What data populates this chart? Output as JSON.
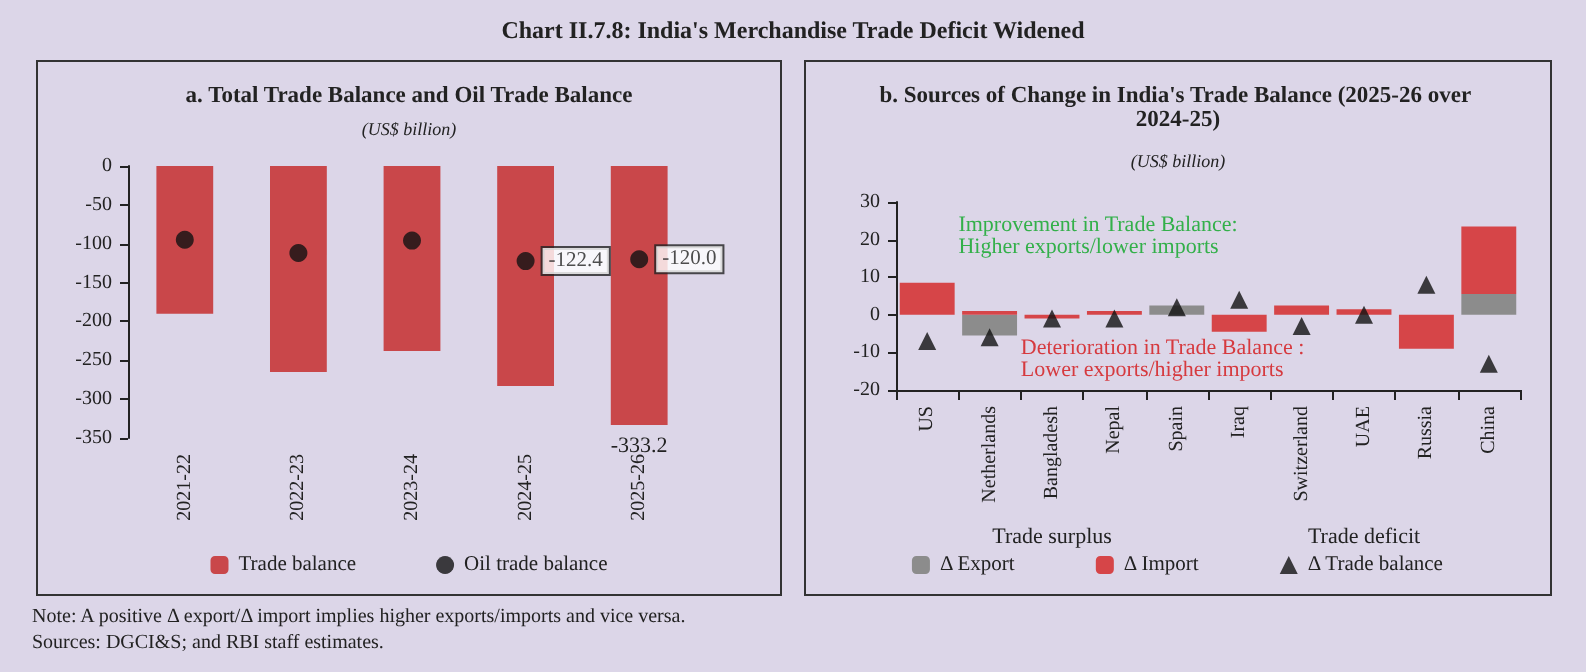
{
  "chart_data": [
    {
      "type": "bar",
      "title": "a. Total Trade Balance and Oil Trade Balance",
      "subtitle": "(US$ billion)",
      "annotations": [
        "Chart II.7.8: India's Merchandise Trade Deficit Widened",
        "Note: A positive Δ export/Δ import implies higher exports/imports and vice versa.",
        "Sources: DGCI&S; and RBI staff estimates."
      ],
      "categories": [
        "2021-22",
        "2022-23",
        "2023-24",
        "2024-25",
        "2025-26"
      ],
      "series": [
        {
          "name": "Trade balance",
          "color": "#c9474a",
          "values": [
            -190,
            -265,
            -238,
            -283,
            -333.2
          ],
          "value_labels": [
            null,
            null,
            null,
            null,
            "-333.2"
          ]
        },
        {
          "name": "Oil trade balance",
          "type": "scatter",
          "marker": "circle",
          "color": "#111111",
          "values": [
            -95,
            -112,
            -96,
            -122.4,
            -120.0
          ],
          "value_labels": [
            null,
            null,
            null,
            "-122.4",
            "-120.0"
          ]
        }
      ],
      "ylim": [
        -350,
        0
      ],
      "yticks": [
        -350,
        -300,
        -250,
        -200,
        -150,
        -100,
        -50,
        0
      ],
      "grid": false,
      "legend": "bottom"
    },
    {
      "type": "bar",
      "title": "b. Sources of Change in India's Trade Balance (2025-26 over 2024-25)",
      "subtitle": "(US$ billion)",
      "annotations": [
        "Improvement in Trade Balance: Higher exports/lower imports",
        "Deterioration in Trade Balance : Lower exports/higher imports",
        "Trade surplus",
        "Trade deficit"
      ],
      "categories": [
        "US",
        "Netherlands",
        "Bangladesh",
        "Nepal",
        "Spain",
        "Iraq",
        "Switzerland",
        "UAE",
        "Russia",
        "China"
      ],
      "stacked": true,
      "series": [
        {
          "name": "Δ Export",
          "color": "#8c8c8c",
          "values": [
            0,
            -5.5,
            0,
            0,
            2.5,
            0,
            0,
            0,
            0,
            5.5
          ]
        },
        {
          "name": "Δ Import",
          "color": "#d64548",
          "values": [
            8.5,
            1,
            -1,
            1,
            0,
            -4.5,
            2.5,
            1.5,
            -9,
            18
          ]
        },
        {
          "name": "Δ Trade balance",
          "type": "scatter",
          "marker": "triangle",
          "color": "#111111",
          "values": [
            -7,
            -6,
            -1,
            -1,
            2,
            4,
            -3,
            0,
            8,
            -13
          ]
        }
      ],
      "ylim": [
        -20,
        30
      ],
      "yticks": [
        -20,
        -10,
        0,
        10,
        20,
        30
      ],
      "grid": false,
      "legend": "bottom"
    }
  ]
}
